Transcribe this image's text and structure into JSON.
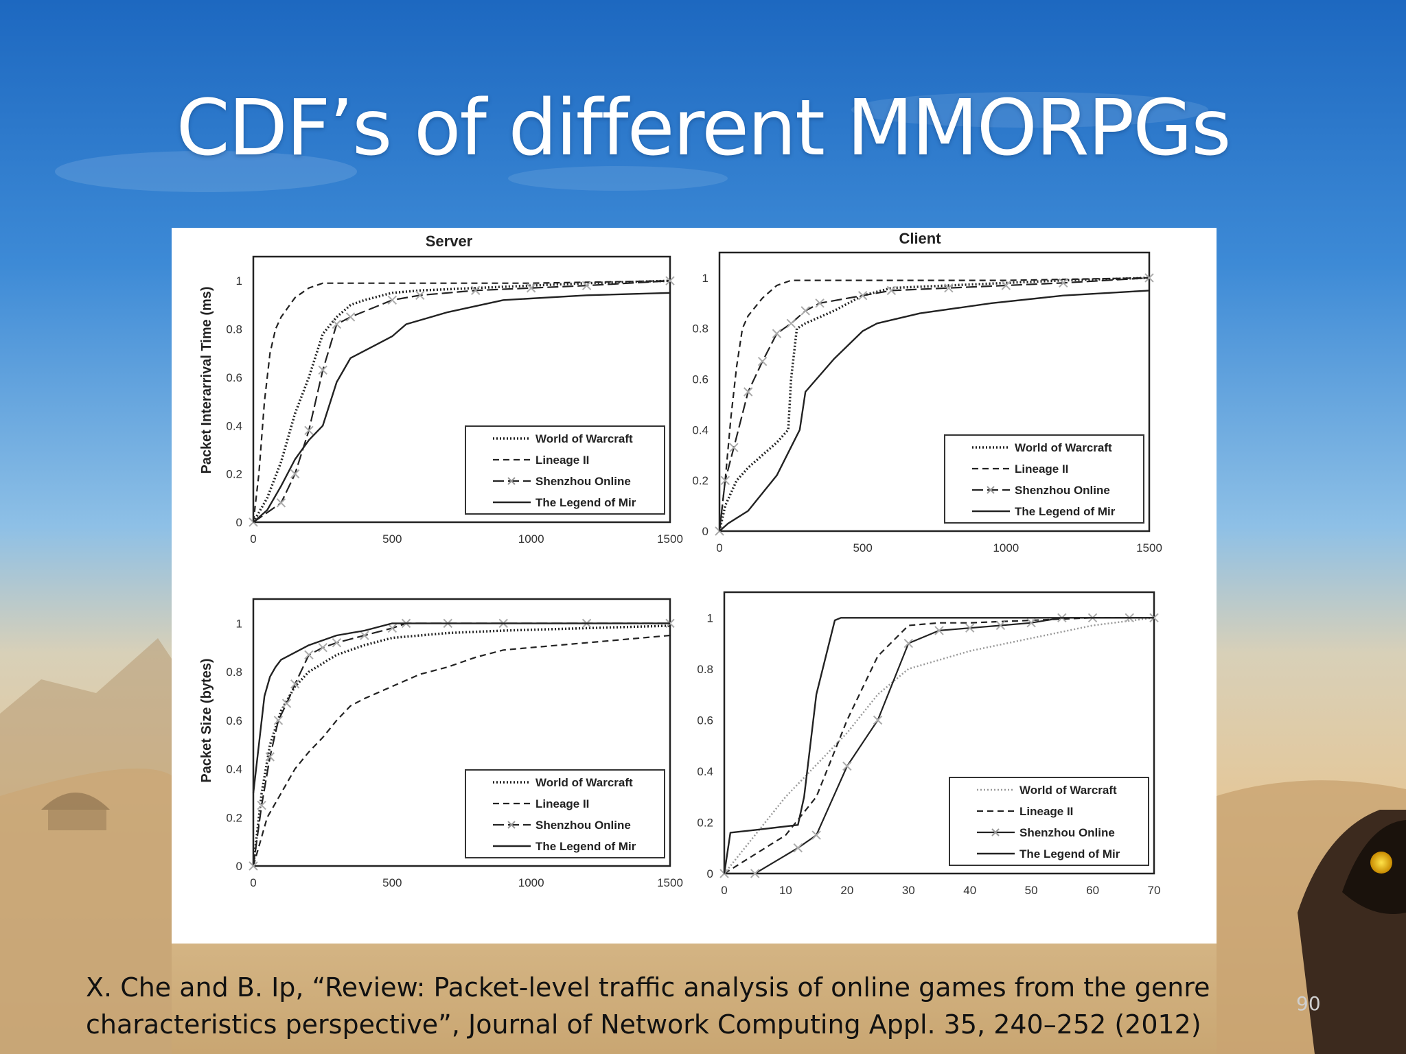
{
  "slide": {
    "title": "CDF’s of different MMORPGs",
    "citation_line1": "X. Che and  B. Ip, “Review: Packet-level traffic analysis of online games from the genre",
    "citation_line2": "characteristics perspective”, Journal of Network Computing Appl. 35, 240–252 (2012)",
    "page_number": "90"
  },
  "colors": {
    "sky_top": "#1f6fc4",
    "sky_mid": "#79b6e6",
    "sand": "#d9bd93",
    "line": "#222222",
    "light_line": "#999999"
  },
  "chart_data": [
    {
      "type": "line",
      "panel": "server-interarrival",
      "title": "Server",
      "xlabel": "",
      "ylabel": "Packet Interarrival Time (ms)",
      "xlim": [
        0,
        1500
      ],
      "ylim": [
        0,
        1.1
      ],
      "xticks": [
        "0",
        "500",
        "1000",
        "1500"
      ],
      "yticks": [
        "0",
        "0.2",
        "0.4",
        "0.6",
        "0.8",
        "1"
      ],
      "legend": "bottom-right",
      "series": [
        {
          "name": "World of Warcraft",
          "style": "dotted",
          "x": [
            0,
            50,
            100,
            150,
            200,
            250,
            300,
            350,
            400,
            500,
            600,
            800,
            1000,
            1200,
            1500
          ],
          "y": [
            0,
            0.1,
            0.25,
            0.45,
            0.6,
            0.78,
            0.85,
            0.9,
            0.92,
            0.95,
            0.96,
            0.97,
            0.98,
            0.99,
            1.0
          ]
        },
        {
          "name": "Lineage II",
          "style": "dashed",
          "x": [
            0,
            20,
            40,
            60,
            80,
            100,
            150,
            200,
            250,
            300,
            500,
            1000,
            1500
          ],
          "y": [
            0,
            0.2,
            0.5,
            0.7,
            0.8,
            0.85,
            0.93,
            0.97,
            0.99,
            0.99,
            0.99,
            0.99,
            1.0
          ]
        },
        {
          "name": "Shenzhou Online",
          "style": "dashdot-x",
          "x": [
            0,
            100,
            150,
            200,
            250,
            300,
            350,
            500,
            600,
            800,
            1000,
            1200,
            1500
          ],
          "y": [
            0,
            0.08,
            0.2,
            0.38,
            0.63,
            0.82,
            0.85,
            0.92,
            0.94,
            0.96,
            0.97,
            0.98,
            1.0
          ]
        },
        {
          "name": "The Legend of Mir",
          "style": "solid",
          "x": [
            0,
            50,
            100,
            150,
            200,
            250,
            300,
            350,
            450,
            500,
            550,
            700,
            900,
            1200,
            1500
          ],
          "y": [
            0,
            0.05,
            0.15,
            0.26,
            0.34,
            0.4,
            0.58,
            0.68,
            0.74,
            0.77,
            0.82,
            0.87,
            0.92,
            0.94,
            0.95
          ]
        }
      ]
    },
    {
      "type": "line",
      "panel": "client-interarrival",
      "title": "Client",
      "xlabel": "",
      "ylabel": "",
      "xlim": [
        0,
        1500
      ],
      "ylim": [
        0,
        1.1
      ],
      "xticks": [
        "0",
        "500",
        "1000",
        "1500"
      ],
      "yticks": [
        "0",
        "0.2",
        "0.4",
        "0.6",
        "0.8",
        "1"
      ],
      "legend": "bottom-right",
      "series": [
        {
          "name": "World of Warcraft",
          "style": "dotted",
          "x": [
            0,
            20,
            60,
            100,
            150,
            200,
            240,
            250,
            270,
            300,
            400,
            500,
            600,
            800,
            1000,
            1200,
            1500
          ],
          "y": [
            0,
            0.1,
            0.2,
            0.25,
            0.3,
            0.35,
            0.4,
            0.6,
            0.8,
            0.82,
            0.87,
            0.93,
            0.96,
            0.97,
            0.98,
            0.99,
            1.0
          ]
        },
        {
          "name": "Lineage II",
          "style": "dashed",
          "x": [
            0,
            20,
            40,
            60,
            80,
            100,
            150,
            200,
            250,
            300,
            500,
            1000,
            1500
          ],
          "y": [
            0,
            0.2,
            0.45,
            0.65,
            0.8,
            0.85,
            0.92,
            0.97,
            0.99,
            0.99,
            0.99,
            0.99,
            1.0
          ]
        },
        {
          "name": "Shenzhou Online",
          "style": "dashdot-x",
          "x": [
            0,
            20,
            50,
            100,
            150,
            200,
            250,
            300,
            350,
            500,
            600,
            800,
            1000,
            1200,
            1500
          ],
          "y": [
            0,
            0.2,
            0.33,
            0.55,
            0.67,
            0.78,
            0.82,
            0.87,
            0.9,
            0.93,
            0.95,
            0.96,
            0.97,
            0.98,
            1.0
          ]
        },
        {
          "name": "The Legend of Mir",
          "style": "solid",
          "x": [
            0,
            30,
            100,
            200,
            280,
            300,
            400,
            500,
            550,
            700,
            950,
            1200,
            1500
          ],
          "y": [
            0,
            0.03,
            0.08,
            0.22,
            0.4,
            0.55,
            0.68,
            0.79,
            0.82,
            0.86,
            0.9,
            0.93,
            0.95
          ]
        }
      ]
    },
    {
      "type": "line",
      "panel": "server-size",
      "title": "",
      "xlabel": "",
      "ylabel": "Packet Size (bytes)",
      "xlim": [
        0,
        1500
      ],
      "ylim": [
        0,
        1.1
      ],
      "xticks": [
        "0",
        "500",
        "1000",
        "1500"
      ],
      "yticks": [
        "0",
        "0.2",
        "0.4",
        "0.6",
        "0.8",
        "1"
      ],
      "legend": "bottom-right",
      "series": [
        {
          "name": "World of Warcraft",
          "style": "dotted",
          "x": [
            0,
            30,
            60,
            100,
            150,
            200,
            300,
            400,
            500,
            700,
            900,
            1200,
            1500
          ],
          "y": [
            0,
            0.3,
            0.5,
            0.64,
            0.74,
            0.8,
            0.87,
            0.91,
            0.94,
            0.96,
            0.97,
            0.98,
            0.99
          ]
        },
        {
          "name": "Lineage II",
          "style": "dashed",
          "x": [
            0,
            50,
            100,
            150,
            200,
            250,
            300,
            350,
            400,
            500,
            600,
            700,
            800,
            900,
            1000,
            1200,
            1500
          ],
          "y": [
            0,
            0.2,
            0.3,
            0.4,
            0.47,
            0.53,
            0.6,
            0.66,
            0.69,
            0.74,
            0.79,
            0.82,
            0.86,
            0.89,
            0.9,
            0.92,
            0.95
          ]
        },
        {
          "name": "Shenzhou Online",
          "style": "dashdot-x",
          "x": [
            0,
            30,
            60,
            90,
            120,
            150,
            200,
            250,
            300,
            400,
            500,
            550,
            700,
            900,
            1200,
            1500
          ],
          "y": [
            0,
            0.25,
            0.45,
            0.6,
            0.67,
            0.75,
            0.87,
            0.9,
            0.92,
            0.95,
            0.98,
            1.0,
            1.0,
            1.0,
            1.0,
            1.0
          ]
        },
        {
          "name": "The Legend of Mir",
          "style": "solid",
          "x": [
            0,
            20,
            40,
            60,
            80,
            100,
            150,
            200,
            300,
            400,
            500,
            800,
            1200,
            1500
          ],
          "y": [
            0.3,
            0.5,
            0.7,
            0.78,
            0.82,
            0.85,
            0.88,
            0.91,
            0.95,
            0.97,
            1.0,
            1.0,
            1.0,
            1.0
          ]
        }
      ]
    },
    {
      "type": "line",
      "panel": "client-size",
      "title": "",
      "xlabel": "",
      "ylabel": "",
      "xlim": [
        0,
        70
      ],
      "ylim": [
        0,
        1.1
      ],
      "xticks": [
        "0",
        "10",
        "20",
        "30",
        "40",
        "50",
        "60",
        "70"
      ],
      "yticks": [
        "0",
        "0.2",
        "0.4",
        "0.6",
        "0.8",
        "1"
      ],
      "legend": "bottom-right",
      "series": [
        {
          "name": "World of Warcraft",
          "style": "light-dotted",
          "x": [
            0,
            10,
            20,
            25,
            30,
            40,
            50,
            60,
            70
          ],
          "y": [
            0,
            0.3,
            0.55,
            0.7,
            0.8,
            0.87,
            0.92,
            0.97,
            1.0
          ]
        },
        {
          "name": "Lineage II",
          "style": "dashed",
          "x": [
            0,
            10,
            15,
            20,
            25,
            30,
            35,
            40,
            50,
            60,
            70
          ],
          "y": [
            0,
            0.15,
            0.3,
            0.6,
            0.85,
            0.97,
            0.98,
            0.98,
            0.99,
            1.0,
            1.0
          ]
        },
        {
          "name": "Shenzhou Online",
          "style": "solid-x",
          "x": [
            0,
            5,
            12,
            15,
            20,
            25,
            30,
            35,
            40,
            45,
            50,
            55,
            60,
            66,
            70
          ],
          "y": [
            0,
            0,
            0.1,
            0.15,
            0.42,
            0.6,
            0.9,
            0.95,
            0.96,
            0.97,
            0.98,
            1.0,
            1.0,
            1.0,
            1.0
          ]
        },
        {
          "name": "The Legend of Mir",
          "style": "solid",
          "x": [
            0,
            1,
            5,
            12,
            13,
            15,
            18,
            19,
            25,
            40,
            70
          ],
          "y": [
            0,
            0.16,
            0.17,
            0.19,
            0.3,
            0.7,
            0.99,
            1.0,
            1.0,
            1.0,
            1.0
          ]
        }
      ]
    }
  ]
}
